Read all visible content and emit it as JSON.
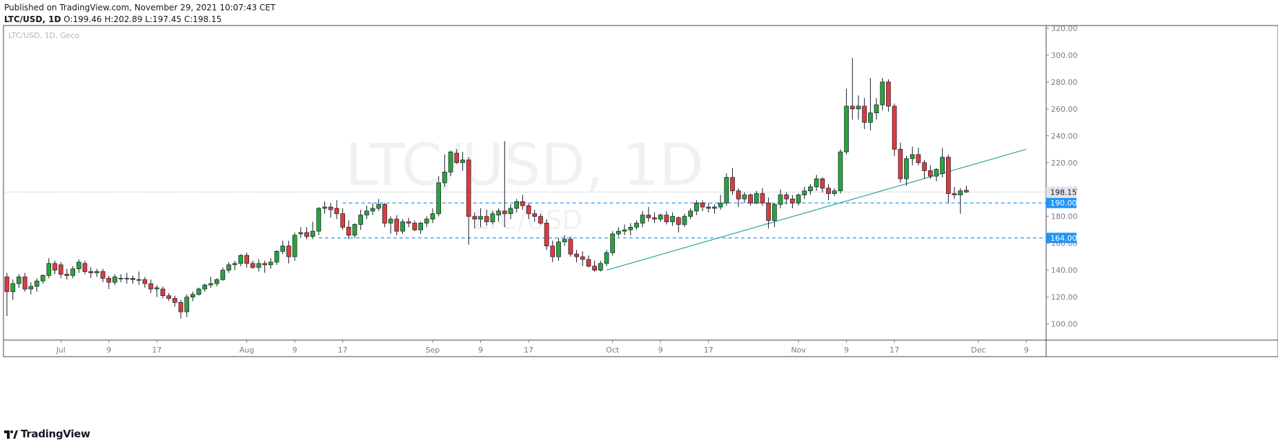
{
  "header": {
    "published": "Published on TradingView.com, November 29, 2021 10:07:43 CET",
    "symbol_line": "LTC/USD, 1D",
    "ohlc": {
      "O": "199.46",
      "H": "202.89",
      "L": "197.45",
      "C": "198.15"
    }
  },
  "legend": "LTC/USD, 1D, Geco",
  "watermark": {
    "big": "LTC/USD, 1D",
    "small": "LTC/USD"
  },
  "footer": {
    "brand": "TradingView"
  },
  "colors": {
    "up": "#26a63a",
    "down": "#e03a3e",
    "level": "#2196f3",
    "trend": "#26a69a",
    "axis": "#787b86"
  },
  "chart_data": {
    "type": "candlestick",
    "y_range": [
      88,
      322
    ],
    "y_ticks": [
      100,
      120,
      140,
      160,
      180,
      200,
      220,
      240,
      260,
      280,
      300,
      320
    ],
    "y_tick_labels": [
      "100.00",
      "120.00",
      "140.00",
      "160.00",
      "180.00",
      "200.00",
      "220.00",
      "240.00",
      "260.00",
      "280.00",
      "300.00",
      "320.00"
    ],
    "x_ticks": [
      {
        "label": "Jul",
        "date": "2021-07-01"
      },
      {
        "label": "9",
        "date": "2021-07-09"
      },
      {
        "label": "17",
        "date": "2021-07-17"
      },
      {
        "label": "Aug",
        "date": "2021-08-01"
      },
      {
        "label": "9",
        "date": "2021-08-09"
      },
      {
        "label": "17",
        "date": "2021-08-17"
      },
      {
        "label": "Sep",
        "date": "2021-09-01"
      },
      {
        "label": "9",
        "date": "2021-09-09"
      },
      {
        "label": "17",
        "date": "2021-09-17"
      },
      {
        "label": "Oct",
        "date": "2021-10-01"
      },
      {
        "label": "9",
        "date": "2021-10-09"
      },
      {
        "label": "17",
        "date": "2021-10-17"
      },
      {
        "label": "Nov",
        "date": "2021-11-01"
      },
      {
        "label": "9",
        "date": "2021-11-09"
      },
      {
        "label": "17",
        "date": "2021-11-17"
      },
      {
        "label": "Dec",
        "date": "2021-12-01"
      },
      {
        "label": "9",
        "date": "2021-12-09"
      }
    ],
    "last_price": 198.15,
    "last_price_label": "198.15",
    "levels": [
      {
        "value": 190,
        "label": "190.00",
        "from": "2021-08-17"
      },
      {
        "value": 164,
        "label": "164.00",
        "from": "2021-08-13"
      }
    ],
    "trendline": {
      "from": {
        "date": "2021-09-30",
        "value": 140
      },
      "to": {
        "date": "2021-12-09",
        "value": 230
      }
    },
    "candles": [
      [
        "2021-06-22",
        135,
        138,
        106,
        124
      ],
      [
        "2021-06-23",
        124,
        133,
        118,
        130
      ],
      [
        "2021-06-24",
        130,
        137,
        127,
        135
      ],
      [
        "2021-06-25",
        135,
        138,
        124,
        126
      ],
      [
        "2021-06-26",
        126,
        131,
        122,
        128
      ],
      [
        "2021-06-27",
        128,
        134,
        124,
        132
      ],
      [
        "2021-06-28",
        132,
        137,
        130,
        136
      ],
      [
        "2021-06-29",
        136,
        149,
        134,
        145
      ],
      [
        "2021-06-30",
        145,
        147,
        137,
        140
      ],
      [
        "2021-07-01",
        144,
        146,
        134,
        137
      ],
      [
        "2021-07-02",
        137,
        141,
        133,
        136
      ],
      [
        "2021-07-03",
        136,
        143,
        134,
        141
      ],
      [
        "2021-07-04",
        141,
        148,
        138,
        146
      ],
      [
        "2021-07-05",
        145,
        147,
        137,
        139
      ],
      [
        "2021-07-06",
        139,
        142,
        134,
        138
      ],
      [
        "2021-07-07",
        138,
        141,
        135,
        139
      ],
      [
        "2021-07-08",
        139,
        141,
        131,
        134
      ],
      [
        "2021-07-09",
        134,
        136,
        126,
        131
      ],
      [
        "2021-07-10",
        131,
        137,
        129,
        135
      ],
      [
        "2021-07-11",
        134,
        137,
        131,
        134
      ],
      [
        "2021-07-12",
        134,
        138,
        130,
        134
      ],
      [
        "2021-07-13",
        134,
        136,
        130,
        133
      ],
      [
        "2021-07-14",
        133,
        139,
        129,
        133
      ],
      [
        "2021-07-15",
        133,
        135,
        127,
        130
      ],
      [
        "2021-07-16",
        130,
        133,
        123,
        126
      ],
      [
        "2021-07-17",
        126,
        129,
        120,
        127
      ],
      [
        "2021-07-18",
        126,
        128,
        119,
        121
      ],
      [
        "2021-07-19",
        121,
        123,
        117,
        119
      ],
      [
        "2021-07-20",
        119,
        121,
        113,
        116
      ],
      [
        "2021-07-21",
        116,
        118,
        104,
        109
      ],
      [
        "2021-07-22",
        109,
        122,
        105,
        120
      ],
      [
        "2021-07-23",
        120,
        124,
        117,
        122
      ],
      [
        "2021-07-24",
        122,
        127,
        121,
        126
      ],
      [
        "2021-07-25",
        126,
        130,
        124,
        129
      ],
      [
        "2021-07-26",
        129,
        135,
        127,
        130
      ],
      [
        "2021-07-27",
        130,
        134,
        128,
        133
      ],
      [
        "2021-07-28",
        133,
        142,
        132,
        140
      ],
      [
        "2021-07-29",
        140,
        146,
        138,
        144
      ],
      [
        "2021-07-30",
        144,
        147,
        140,
        145
      ],
      [
        "2021-07-31",
        145,
        152,
        143,
        151
      ],
      [
        "2021-08-01",
        151,
        153,
        142,
        145
      ],
      [
        "2021-08-02",
        145,
        147,
        141,
        142
      ],
      [
        "2021-08-03",
        142,
        148,
        139,
        145
      ],
      [
        "2021-08-04",
        145,
        147,
        138,
        144
      ],
      [
        "2021-08-05",
        144,
        149,
        141,
        146
      ],
      [
        "2021-08-06",
        146,
        155,
        144,
        154
      ],
      [
        "2021-08-07",
        154,
        162,
        152,
        158
      ],
      [
        "2021-08-08",
        158,
        162,
        145,
        150
      ],
      [
        "2021-08-09",
        150,
        168,
        147,
        166
      ],
      [
        "2021-08-10",
        167,
        172,
        164,
        168
      ],
      [
        "2021-08-11",
        168,
        172,
        163,
        165
      ],
      [
        "2021-08-12",
        165,
        176,
        163,
        169
      ],
      [
        "2021-08-13",
        169,
        187,
        166,
        186
      ],
      [
        "2021-08-14",
        186,
        191,
        182,
        187
      ],
      [
        "2021-08-15",
        187,
        190,
        179,
        185
      ],
      [
        "2021-08-16",
        186,
        192,
        178,
        182
      ],
      [
        "2021-08-17",
        182,
        186,
        170,
        172
      ],
      [
        "2021-08-18",
        172,
        177,
        163,
        166
      ],
      [
        "2021-08-19",
        166,
        175,
        164,
        174
      ],
      [
        "2021-08-20",
        174,
        185,
        170,
        181
      ],
      [
        "2021-08-21",
        181,
        188,
        178,
        184
      ],
      [
        "2021-08-22",
        184,
        190,
        181,
        186
      ],
      [
        "2021-08-23",
        186,
        193,
        184,
        189
      ],
      [
        "2021-08-24",
        189,
        190,
        172,
        175
      ],
      [
        "2021-08-25",
        175,
        180,
        167,
        178
      ],
      [
        "2021-08-26",
        178,
        181,
        166,
        169
      ],
      [
        "2021-08-27",
        169,
        178,
        167,
        176
      ],
      [
        "2021-08-28",
        176,
        179,
        172,
        175
      ],
      [
        "2021-08-29",
        175,
        177,
        169,
        170
      ],
      [
        "2021-08-30",
        170,
        176,
        167,
        175
      ],
      [
        "2021-08-31",
        175,
        180,
        172,
        178
      ],
      [
        "2021-09-01",
        178,
        186,
        175,
        182
      ],
      [
        "2021-09-02",
        182,
        210,
        180,
        205
      ],
      [
        "2021-09-03",
        205,
        226,
        202,
        213
      ],
      [
        "2021-09-04",
        213,
        229,
        210,
        228
      ],
      [
        "2021-09-05",
        227,
        230,
        219,
        220
      ],
      [
        "2021-09-06",
        220,
        228,
        214,
        222
      ],
      [
        "2021-09-07",
        222,
        224,
        159,
        180
      ],
      [
        "2021-09-08",
        180,
        183,
        171,
        178
      ],
      [
        "2021-09-09",
        178,
        186,
        172,
        180
      ],
      [
        "2021-09-10",
        180,
        185,
        173,
        176
      ],
      [
        "2021-09-11",
        176,
        184,
        174,
        182
      ],
      [
        "2021-09-12",
        181,
        186,
        176,
        184
      ],
      [
        "2021-09-13",
        184,
        236,
        172,
        182
      ],
      [
        "2021-09-14",
        182,
        189,
        178,
        186
      ],
      [
        "2021-09-15",
        186,
        193,
        183,
        191
      ],
      [
        "2021-09-16",
        191,
        196,
        185,
        188
      ],
      [
        "2021-09-17",
        188,
        190,
        178,
        182
      ],
      [
        "2021-09-18",
        182,
        185,
        176,
        180
      ],
      [
        "2021-09-19",
        180,
        182,
        174,
        175
      ],
      [
        "2021-09-20",
        175,
        178,
        155,
        158
      ],
      [
        "2021-09-21",
        158,
        162,
        146,
        150
      ],
      [
        "2021-09-22",
        150,
        164,
        147,
        161
      ],
      [
        "2021-09-23",
        161,
        166,
        158,
        163
      ],
      [
        "2021-09-24",
        163,
        165,
        150,
        152
      ],
      [
        "2021-09-25",
        152,
        155,
        146,
        150
      ],
      [
        "2021-09-26",
        150,
        154,
        143,
        148
      ],
      [
        "2021-09-27",
        148,
        151,
        142,
        143
      ],
      [
        "2021-09-28",
        143,
        147,
        139,
        140
      ],
      [
        "2021-09-29",
        140,
        147,
        139,
        145
      ],
      [
        "2021-09-30",
        145,
        155,
        143,
        153
      ],
      [
        "2021-10-01",
        153,
        169,
        151,
        167
      ],
      [
        "2021-10-02",
        167,
        172,
        165,
        169
      ],
      [
        "2021-10-03",
        169,
        174,
        166,
        170
      ],
      [
        "2021-10-04",
        170,
        175,
        166,
        172
      ],
      [
        "2021-10-05",
        172,
        177,
        170,
        175
      ],
      [
        "2021-10-06",
        175,
        184,
        172,
        181
      ],
      [
        "2021-10-07",
        181,
        187,
        176,
        179
      ],
      [
        "2021-10-08",
        179,
        183,
        175,
        178
      ],
      [
        "2021-10-09",
        178,
        182,
        176,
        181
      ],
      [
        "2021-10-10",
        181,
        184,
        174,
        176
      ],
      [
        "2021-10-11",
        176,
        183,
        173,
        180
      ],
      [
        "2021-10-12",
        179,
        180,
        168,
        174
      ],
      [
        "2021-10-13",
        174,
        182,
        172,
        180
      ],
      [
        "2021-10-14",
        180,
        186,
        178,
        184
      ],
      [
        "2021-10-15",
        184,
        192,
        181,
        190
      ],
      [
        "2021-10-16",
        190,
        192,
        184,
        187
      ],
      [
        "2021-10-17",
        187,
        190,
        183,
        186
      ],
      [
        "2021-10-18",
        186,
        189,
        182,
        187
      ],
      [
        "2021-10-19",
        187,
        196,
        185,
        190
      ],
      [
        "2021-10-20",
        190,
        212,
        188,
        209
      ],
      [
        "2021-10-21",
        209,
        216,
        196,
        199
      ],
      [
        "2021-10-22",
        199,
        201,
        187,
        193
      ],
      [
        "2021-10-23",
        193,
        198,
        190,
        196
      ],
      [
        "2021-10-24",
        196,
        197,
        188,
        190
      ],
      [
        "2021-10-25",
        190,
        199,
        189,
        197
      ],
      [
        "2021-10-26",
        197,
        201,
        188,
        190
      ],
      [
        "2021-10-27",
        190,
        194,
        171,
        177
      ],
      [
        "2021-10-28",
        177,
        190,
        172,
        189
      ],
      [
        "2021-10-29",
        189,
        200,
        186,
        196
      ],
      [
        "2021-10-30",
        196,
        198,
        189,
        193
      ],
      [
        "2021-10-31",
        193,
        196,
        186,
        190
      ],
      [
        "2021-11-01",
        190,
        197,
        188,
        196
      ],
      [
        "2021-11-02",
        196,
        202,
        193,
        199
      ],
      [
        "2021-11-03",
        199,
        204,
        196,
        202
      ],
      [
        "2021-11-04",
        202,
        211,
        199,
        208
      ],
      [
        "2021-11-05",
        208,
        209,
        198,
        201
      ],
      [
        "2021-11-06",
        201,
        204,
        192,
        197
      ],
      [
        "2021-11-07",
        197,
        201,
        195,
        199
      ],
      [
        "2021-11-08",
        199,
        230,
        197,
        228
      ],
      [
        "2021-11-09",
        228,
        275,
        226,
        262
      ],
      [
        "2021-11-10",
        262,
        298,
        252,
        260
      ],
      [
        "2021-11-11",
        260,
        270,
        252,
        262
      ],
      [
        "2021-11-12",
        262,
        268,
        245,
        250
      ],
      [
        "2021-11-13",
        250,
        283,
        244,
        257
      ],
      [
        "2021-11-14",
        257,
        268,
        252,
        263
      ],
      [
        "2021-11-15",
        263,
        283,
        259,
        280
      ],
      [
        "2021-11-16",
        280,
        282,
        258,
        262
      ],
      [
        "2021-11-17",
        262,
        264,
        225,
        230
      ],
      [
        "2021-11-18",
        230,
        235,
        205,
        208
      ],
      [
        "2021-11-19",
        208,
        225,
        203,
        223
      ],
      [
        "2021-11-20",
        223,
        232,
        218,
        226
      ],
      [
        "2021-11-21",
        226,
        231,
        218,
        220
      ],
      [
        "2021-11-22",
        220,
        222,
        208,
        214
      ],
      [
        "2021-11-23",
        214,
        218,
        208,
        210
      ],
      [
        "2021-11-24",
        210,
        216,
        206,
        215
      ],
      [
        "2021-11-25",
        212,
        231,
        209,
        224
      ],
      [
        "2021-11-26",
        224,
        226,
        190,
        197
      ],
      [
        "2021-11-27",
        197,
        202,
        193,
        196
      ],
      [
        "2021-11-28",
        196,
        201,
        182,
        199
      ],
      [
        "2021-11-29",
        199.46,
        202.89,
        197.45,
        198.15
      ]
    ]
  }
}
